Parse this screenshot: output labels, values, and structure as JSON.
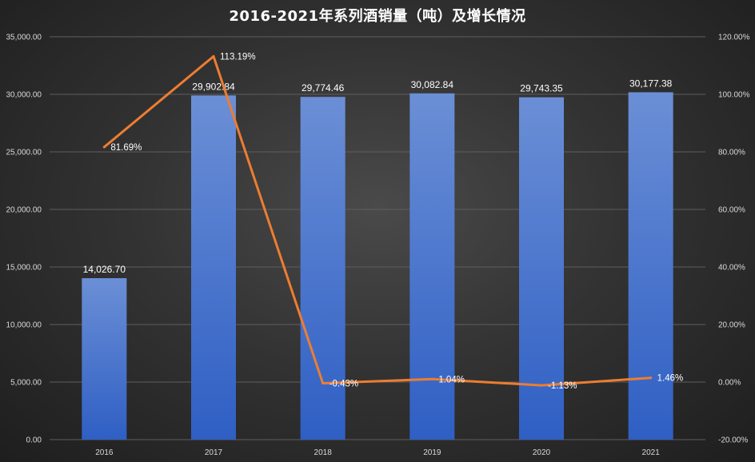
{
  "chart_data": {
    "type": "bar",
    "title": "2016-2021年系列酒销量（吨）及增长情况",
    "categories": [
      "2016",
      "2017",
      "2018",
      "2019",
      "2020",
      "2021"
    ],
    "series": [
      {
        "type": "bar",
        "values": [
          14026.7,
          29902.84,
          29774.46,
          30082.84,
          29743.35,
          30177.38
        ],
        "labels": [
          "14,026.70",
          "29,902.84",
          "29,774.46",
          "30,082.84",
          "29,743.35",
          "30,177.38"
        ],
        "color": "#4472c4",
        "axis": "left"
      },
      {
        "type": "line",
        "values": [
          81.69,
          113.19,
          -0.43,
          1.04,
          -1.13,
          1.46
        ],
        "labels": [
          "81.69%",
          "113.19%",
          "-0.43%",
          "1.04%",
          "-1.13%",
          "1.46%"
        ],
        "color": "#ed7d31",
        "axis": "right"
      }
    ],
    "y_left": {
      "range": [
        0,
        35000
      ],
      "ticks": [
        0,
        5000,
        10000,
        15000,
        20000,
        25000,
        30000,
        35000
      ],
      "tick_labels": [
        "0.00",
        "5,000.00",
        "10,000.00",
        "15,000.00",
        "20,000.00",
        "25,000.00",
        "30,000.00",
        "35,000.00"
      ]
    },
    "y_right": {
      "range": [
        -20,
        120
      ],
      "ticks": [
        -20,
        0,
        20,
        40,
        60,
        80,
        100,
        120
      ],
      "tick_labels": [
        "-20.00%",
        "0.00%",
        "20.00%",
        "40.00%",
        "60.00%",
        "80.00%",
        "100.00%",
        "120.00%"
      ]
    },
    "grid": true,
    "legend": "none"
  }
}
